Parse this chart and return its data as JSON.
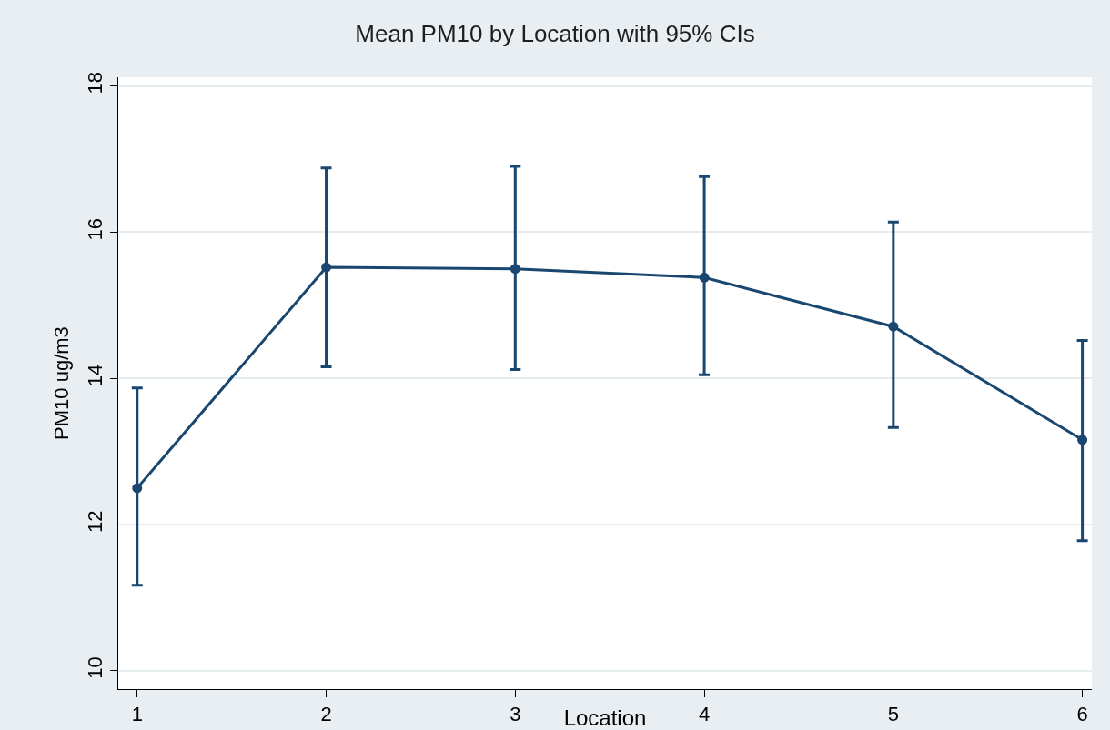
{
  "chart_data": {
    "type": "line",
    "title": "Mean PM10 by Location with 95% CIs",
    "xlabel": "Location",
    "ylabel": "PM10 ug/m3",
    "x": [
      1,
      2,
      3,
      4,
      5,
      6
    ],
    "series": [
      {
        "color": "#1a476f",
        "values": [
          12.5,
          15.52,
          15.5,
          15.38,
          14.71,
          13.16
        ],
        "errors": [
          [
            11.17,
            13.87
          ],
          [
            14.16,
            16.88
          ],
          [
            14.12,
            16.9
          ],
          [
            14.05,
            16.76
          ],
          [
            13.33,
            16.14
          ],
          [
            11.78,
            14.52
          ]
        ]
      }
    ],
    "xlim": [
      0.9,
      6.05
    ],
    "xticks": [
      1,
      2,
      3,
      4,
      5,
      6
    ],
    "ylim": [
      9.75,
      18.12
    ],
    "yticks": [
      10,
      12,
      14,
      16,
      18
    ],
    "grid": "y",
    "marker": "circle",
    "line_style": "solid"
  }
}
